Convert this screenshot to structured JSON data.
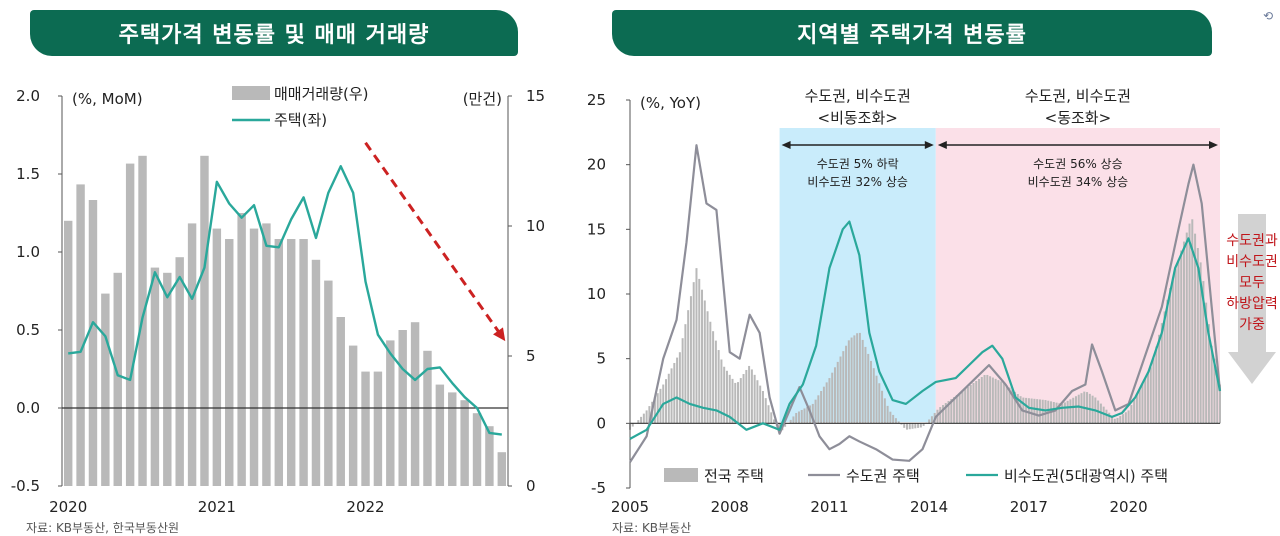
{
  "colors": {
    "header_bg": "#0c6b52",
    "teal": "#2aa89b",
    "bar_grey": "#b9b9b9",
    "arrow_red": "#cc2222",
    "blue_band": "#c9ecfb",
    "pink_band": "#fbe0e8",
    "annotation_red": "#c0151a",
    "gray_line": "#8e8e99"
  },
  "chart_data": [
    {
      "type": "bar+line",
      "title": "주택가격 변동률 및 매매 거래량",
      "left_axis_label": "(%, MoM)",
      "right_axis_label": "(만건)",
      "ylim_left": [
        -0.5,
        2.0
      ],
      "yticks_left": [
        "2.0",
        "1.5",
        "1.0",
        "0.5",
        "0.0",
        "-0.5"
      ],
      "ylim_right": [
        0,
        15
      ],
      "yticks_right": [
        "15",
        "10",
        "5",
        "0"
      ],
      "x_tick_labels": [
        "2020",
        "2021",
        "2022"
      ],
      "legend": {
        "bars": "매매거래량(우)",
        "line": "주택(좌)"
      },
      "months": 36,
      "series": [
        {
          "name": "매매거래량(우)",
          "axis": "right",
          "values": [
            10.2,
            11.6,
            11.0,
            7.4,
            8.2,
            12.4,
            12.7,
            8.4,
            8.2,
            8.8,
            10.1,
            12.7,
            9.9,
            9.5,
            10.5,
            9.9,
            10.1,
            9.5,
            9.5,
            9.5,
            8.7,
            7.9,
            6.5,
            5.4,
            4.4,
            4.4,
            5.6,
            6.0,
            6.3,
            5.2,
            3.9,
            3.6,
            3.3,
            2.8,
            2.3,
            1.3
          ]
        },
        {
          "name": "주택(좌)",
          "axis": "left",
          "values": [
            0.35,
            0.36,
            0.55,
            0.46,
            0.21,
            0.18,
            0.58,
            0.87,
            0.71,
            0.84,
            0.7,
            0.9,
            1.45,
            1.31,
            1.22,
            1.3,
            1.04,
            1.03,
            1.21,
            1.35,
            1.09,
            1.38,
            1.55,
            1.38,
            0.81,
            0.47,
            0.35,
            0.25,
            0.18,
            0.25,
            0.26,
            0.16,
            0.07,
            0.0,
            -0.16,
            -0.17
          ]
        }
      ],
      "annotation": "downward trend arrow (late 2021 to 2022)"
    },
    {
      "type": "line+bar",
      "title": "지역별 주택가격 변동률",
      "y_axis_label": "(%, YoY)",
      "ylim": [
        -5,
        25
      ],
      "yticks": [
        "25",
        "20",
        "15",
        "10",
        "5",
        "0",
        "-5"
      ],
      "x_tick_labels": [
        "2005",
        "2008",
        "2011",
        "2014",
        "2017",
        "2020"
      ],
      "legend": {
        "bars": "전국 주택",
        "gray_line": "수도권 주택",
        "teal_line": "비수도권(5대광역시) 주택"
      },
      "period_1": {
        "title": "수도권, 비수도권",
        "subtitle": "<비동조화>",
        "note_1": "수도권 5% 하락",
        "note_2": "비수도권 32% 상승",
        "span": [
          2009.5,
          2014.2
        ]
      },
      "period_2": {
        "title": "수도권, 비수도권",
        "subtitle": "<동조화>",
        "note_1": "수도권 56% 상승",
        "note_2": "비수도권 34% 상승",
        "span": [
          2014.2,
          2022.75
        ]
      },
      "side_note": [
        "수도권과",
        "비수도권",
        "모두",
        "하방압력",
        "가중"
      ],
      "series": [
        {
          "name": "전국 주택",
          "points": [
            [
              2005.0,
              -0.5
            ],
            [
              2005.5,
              1.0
            ],
            [
              2006.0,
              3.0
            ],
            [
              2006.5,
              5.5
            ],
            [
              2007.0,
              12.0
            ],
            [
              2007.4,
              8.0
            ],
            [
              2007.8,
              4.5
            ],
            [
              2008.2,
              3.0
            ],
            [
              2008.6,
              4.5
            ],
            [
              2009.0,
              2.5
            ],
            [
              2009.5,
              -0.8
            ],
            [
              2010.0,
              0.8
            ],
            [
              2010.5,
              1.5
            ],
            [
              2011.0,
              3.5
            ],
            [
              2011.6,
              6.5
            ],
            [
              2011.9,
              7.1
            ],
            [
              2012.3,
              4.5
            ],
            [
              2012.8,
              1.0
            ],
            [
              2013.3,
              -0.5
            ],
            [
              2013.8,
              -0.3
            ],
            [
              2014.3,
              1.2
            ],
            [
              2015.0,
              2.5
            ],
            [
              2015.7,
              3.8
            ],
            [
              2016.2,
              3.2
            ],
            [
              2016.8,
              2.0
            ],
            [
              2017.5,
              1.8
            ],
            [
              2018.0,
              1.5
            ],
            [
              2018.7,
              2.5
            ],
            [
              2019.0,
              2.0
            ],
            [
              2019.6,
              0.3
            ],
            [
              2020.0,
              1.0
            ],
            [
              2020.7,
              4.5
            ],
            [
              2021.3,
              11.0
            ],
            [
              2021.9,
              16.0
            ],
            [
              2022.2,
              12.0
            ],
            [
              2022.5,
              6.0
            ],
            [
              2022.75,
              3.0
            ]
          ]
        },
        {
          "name": "수도권 주택",
          "points": [
            [
              2005.0,
              -3.0
            ],
            [
              2005.5,
              -1.0
            ],
            [
              2006.0,
              5.0
            ],
            [
              2006.4,
              8.0
            ],
            [
              2006.7,
              14.0
            ],
            [
              2007.0,
              21.5
            ],
            [
              2007.3,
              17.0
            ],
            [
              2007.6,
              16.5
            ],
            [
              2007.8,
              11.0
            ],
            [
              2008.0,
              5.5
            ],
            [
              2008.3,
              5.0
            ],
            [
              2008.6,
              8.4
            ],
            [
              2008.9,
              7.0
            ],
            [
              2009.2,
              2.0
            ],
            [
              2009.5,
              -0.8
            ],
            [
              2009.8,
              1.0
            ],
            [
              2010.1,
              2.8
            ],
            [
              2010.4,
              1.0
            ],
            [
              2010.7,
              -1.0
            ],
            [
              2011.0,
              -2.0
            ],
            [
              2011.3,
              -1.6
            ],
            [
              2011.6,
              -1.0
            ],
            [
              2011.9,
              -1.4
            ],
            [
              2012.4,
              -2.0
            ],
            [
              2012.9,
              -2.8
            ],
            [
              2013.4,
              -2.9
            ],
            [
              2013.8,
              -2.0
            ],
            [
              2014.2,
              0.5
            ],
            [
              2014.8,
              2.0
            ],
            [
              2015.4,
              3.5
            ],
            [
              2015.8,
              4.5
            ],
            [
              2016.3,
              3.0
            ],
            [
              2016.8,
              1.0
            ],
            [
              2017.3,
              0.6
            ],
            [
              2017.8,
              1.0
            ],
            [
              2018.3,
              2.5
            ],
            [
              2018.7,
              3.0
            ],
            [
              2018.9,
              6.1
            ],
            [
              2019.2,
              4.0
            ],
            [
              2019.6,
              1.0
            ],
            [
              2020.0,
              1.5
            ],
            [
              2020.6,
              6.0
            ],
            [
              2021.0,
              9.0
            ],
            [
              2021.5,
              15.0
            ],
            [
              2021.8,
              18.5
            ],
            [
              2021.95,
              20.0
            ],
            [
              2022.2,
              17.0
            ],
            [
              2022.5,
              9.0
            ],
            [
              2022.75,
              2.5
            ]
          ]
        },
        {
          "name": "비수도권(5대광역시) 주택",
          "points": [
            [
              2005.0,
              -1.2
            ],
            [
              2005.5,
              -0.5
            ],
            [
              2006.0,
              1.5
            ],
            [
              2006.4,
              2.0
            ],
            [
              2006.8,
              1.5
            ],
            [
              2007.2,
              1.2
            ],
            [
              2007.6,
              1.0
            ],
            [
              2008.0,
              0.5
            ],
            [
              2008.5,
              -0.5
            ],
            [
              2009.0,
              0.0
            ],
            [
              2009.5,
              -0.5
            ],
            [
              2009.8,
              1.5
            ],
            [
              2010.2,
              3.0
            ],
            [
              2010.6,
              6.0
            ],
            [
              2011.0,
              12.0
            ],
            [
              2011.4,
              15.0
            ],
            [
              2011.6,
              15.6
            ],
            [
              2011.9,
              13.0
            ],
            [
              2012.2,
              7.0
            ],
            [
              2012.5,
              4.0
            ],
            [
              2012.9,
              1.8
            ],
            [
              2013.3,
              1.5
            ],
            [
              2013.8,
              2.5
            ],
            [
              2014.2,
              3.2
            ],
            [
              2014.8,
              3.5
            ],
            [
              2015.2,
              4.5
            ],
            [
              2015.6,
              5.5
            ],
            [
              2015.9,
              6.0
            ],
            [
              2016.2,
              5.0
            ],
            [
              2016.6,
              2.0
            ],
            [
              2017.0,
              1.2
            ],
            [
              2017.5,
              1.0
            ],
            [
              2018.0,
              1.2
            ],
            [
              2018.5,
              1.3
            ],
            [
              2019.0,
              1.0
            ],
            [
              2019.5,
              0.5
            ],
            [
              2019.8,
              0.8
            ],
            [
              2020.2,
              2.0
            ],
            [
              2020.6,
              4.0
            ],
            [
              2021.0,
              7.0
            ],
            [
              2021.4,
              12.0
            ],
            [
              2021.8,
              14.3
            ],
            [
              2022.1,
              12.0
            ],
            [
              2022.4,
              7.0
            ],
            [
              2022.75,
              2.5
            ]
          ]
        }
      ]
    }
  ],
  "sources": {
    "left": "자료: KB부동산, 한국부동산원",
    "right": "자료: KB부동산"
  }
}
